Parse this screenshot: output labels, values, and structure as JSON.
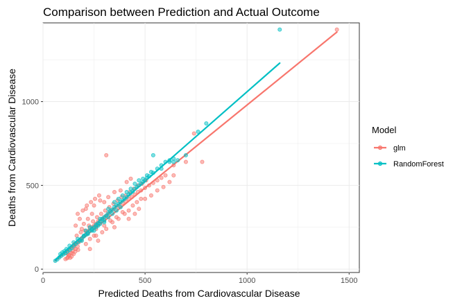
{
  "chart_data": {
    "type": "scatter",
    "title": "Comparison between Prediction and Actual Outcome",
    "xlabel": "Predicted Deaths from Cardiovascular Disease",
    "ylabel": "Deaths from Cardiovascular Disease",
    "xlim": [
      0,
      1550
    ],
    "ylim": [
      -20,
      1470
    ],
    "x_ticks": [
      0,
      500,
      1000,
      1500
    ],
    "y_ticks": [
      0,
      500,
      1000
    ],
    "grid": true,
    "legend": {
      "title": "Model",
      "placement": "right",
      "entries": [
        "glm",
        "RandomForest"
      ]
    },
    "series": [
      {
        "name": "glm",
        "color": "#F8766D",
        "points": [
          [
            110,
            60
          ],
          [
            118,
            65
          ],
          [
            122,
            72
          ],
          [
            128,
            80
          ],
          [
            133,
            68
          ],
          [
            140,
            75
          ],
          [
            150,
            90
          ],
          [
            120,
            95
          ],
          [
            145,
            110
          ],
          [
            160,
            120
          ],
          [
            170,
            135
          ],
          [
            155,
            150
          ],
          [
            175,
            160
          ],
          [
            185,
            170
          ],
          [
            190,
            185
          ],
          [
            200,
            195
          ],
          [
            210,
            205
          ],
          [
            215,
            220
          ],
          [
            225,
            230
          ],
          [
            230,
            245
          ],
          [
            240,
            250
          ],
          [
            250,
            260
          ],
          [
            260,
            270
          ],
          [
            270,
            285
          ],
          [
            280,
            290
          ],
          [
            290,
            300
          ],
          [
            300,
            310
          ],
          [
            310,
            320
          ],
          [
            320,
            330
          ],
          [
            330,
            345
          ],
          [
            345,
            355
          ],
          [
            360,
            370
          ],
          [
            375,
            380
          ],
          [
            390,
            395
          ],
          [
            405,
            405
          ],
          [
            420,
            420
          ],
          [
            435,
            430
          ],
          [
            450,
            445
          ],
          [
            465,
            460
          ],
          [
            480,
            470
          ],
          [
            500,
            485
          ],
          [
            520,
            500
          ],
          [
            540,
            515
          ],
          [
            560,
            530
          ],
          [
            580,
            545
          ],
          [
            600,
            560
          ],
          [
            230,
            180
          ],
          [
            250,
            200
          ],
          [
            270,
            170
          ],
          [
            220,
            300
          ],
          [
            240,
            330
          ],
          [
            200,
            270
          ],
          [
            180,
            300
          ],
          [
            160,
            260
          ],
          [
            210,
            360
          ],
          [
            260,
            240
          ],
          [
            300,
            260
          ],
          [
            330,
            290
          ],
          [
            350,
            250
          ],
          [
            370,
            300
          ],
          [
            400,
            330
          ],
          [
            420,
            350
          ],
          [
            440,
            380
          ],
          [
            460,
            400
          ],
          [
            480,
            420
          ],
          [
            300,
            400
          ],
          [
            320,
            430
          ],
          [
            350,
            460
          ],
          [
            380,
            470
          ],
          [
            410,
            520
          ],
          [
            430,
            540
          ],
          [
            250,
            380
          ],
          [
            280,
            410
          ],
          [
            190,
            240
          ],
          [
            210,
            150
          ],
          [
            230,
            120
          ],
          [
            260,
            200
          ],
          [
            290,
            220
          ],
          [
            310,
            240
          ],
          [
            340,
            280
          ],
          [
            360,
            310
          ],
          [
            390,
            340
          ],
          [
            420,
            300
          ],
          [
            450,
            330
          ],
          [
            470,
            360
          ],
          [
            500,
            420
          ],
          [
            530,
            440
          ],
          [
            560,
            470
          ],
          [
            590,
            490
          ],
          [
            620,
            520
          ],
          [
            640,
            560
          ],
          [
            640,
            620
          ],
          [
            310,
            680
          ],
          [
            700,
            640
          ],
          [
            740,
            810
          ],
          [
            780,
            640
          ],
          [
            1440,
            1430
          ],
          [
            165,
            200
          ],
          [
            185,
            220
          ],
          [
            205,
            230
          ],
          [
            225,
            260
          ],
          [
            245,
            285
          ],
          [
            265,
            310
          ],
          [
            285,
            330
          ],
          [
            305,
            350
          ],
          [
            325,
            370
          ],
          [
            345,
            390
          ],
          [
            365,
            410
          ],
          [
            385,
            430
          ],
          [
            405,
            440
          ],
          [
            425,
            460
          ],
          [
            445,
            480
          ],
          [
            465,
            500
          ],
          [
            485,
            510
          ],
          [
            505,
            530
          ],
          [
            170,
            330
          ],
          [
            195,
            350
          ],
          [
            215,
            380
          ],
          [
            235,
            400
          ],
          [
            255,
            420
          ],
          [
            275,
            440
          ],
          [
            135,
            100
          ],
          [
            150,
            130
          ],
          [
            125,
            85
          ],
          [
            142,
            95
          ],
          [
            158,
            105
          ],
          [
            172,
            115
          ]
        ]
      },
      {
        "name": "RandomForest",
        "color": "#00BFC4",
        "points": [
          [
            60,
            50
          ],
          [
            70,
            58
          ],
          [
            80,
            70
          ],
          [
            90,
            80
          ],
          [
            100,
            88
          ],
          [
            110,
            95
          ],
          [
            120,
            105
          ],
          [
            130,
            115
          ],
          [
            140,
            125
          ],
          [
            150,
            140
          ],
          [
            160,
            150
          ],
          [
            170,
            160
          ],
          [
            180,
            170
          ],
          [
            190,
            180
          ],
          [
            200,
            195
          ],
          [
            210,
            205
          ],
          [
            220,
            215
          ],
          [
            230,
            230
          ],
          [
            240,
            240
          ],
          [
            250,
            250
          ],
          [
            260,
            265
          ],
          [
            270,
            275
          ],
          [
            280,
            285
          ],
          [
            290,
            300
          ],
          [
            300,
            310
          ],
          [
            310,
            320
          ],
          [
            320,
            335
          ],
          [
            330,
            345
          ],
          [
            340,
            355
          ],
          [
            350,
            370
          ],
          [
            360,
            380
          ],
          [
            370,
            390
          ],
          [
            380,
            400
          ],
          [
            390,
            410
          ],
          [
            400,
            420
          ],
          [
            410,
            430
          ],
          [
            420,
            445
          ],
          [
            430,
            455
          ],
          [
            440,
            465
          ],
          [
            450,
            480
          ],
          [
            460,
            490
          ],
          [
            470,
            500
          ],
          [
            480,
            510
          ],
          [
            490,
            520
          ],
          [
            500,
            530
          ],
          [
            510,
            545
          ],
          [
            520,
            555
          ],
          [
            540,
            575
          ],
          [
            560,
            600
          ],
          [
            580,
            620
          ],
          [
            600,
            640
          ],
          [
            620,
            650
          ],
          [
            640,
            660
          ],
          [
            660,
            650
          ],
          [
            540,
            680
          ],
          [
            700,
            680
          ],
          [
            760,
            820
          ],
          [
            800,
            870
          ],
          [
            1160,
            1430
          ],
          [
            280,
            300
          ],
          [
            300,
            280
          ],
          [
            320,
            360
          ],
          [
            340,
            330
          ],
          [
            360,
            350
          ],
          [
            380,
            370
          ],
          [
            250,
            230
          ],
          [
            270,
            260
          ],
          [
            230,
            250
          ],
          [
            210,
            230
          ],
          [
            190,
            170
          ],
          [
            170,
            180
          ],
          [
            150,
            160
          ],
          [
            130,
            140
          ],
          [
            115,
            120
          ],
          [
            105,
            108
          ],
          [
            95,
            100
          ],
          [
            85,
            90
          ],
          [
            350,
            400
          ],
          [
            370,
            420
          ],
          [
            390,
            440
          ],
          [
            410,
            460
          ],
          [
            430,
            480
          ],
          [
            450,
            510
          ],
          [
            470,
            530
          ],
          [
            490,
            540
          ],
          [
            510,
            560
          ],
          [
            530,
            580
          ],
          [
            580,
            600
          ],
          [
            620,
            640
          ],
          [
            640,
            640
          ],
          [
            200,
            200
          ],
          [
            220,
            210
          ],
          [
            240,
            230
          ],
          [
            260,
            250
          ],
          [
            280,
            270
          ],
          [
            300,
            290
          ],
          [
            320,
            310
          ]
        ]
      }
    ],
    "trend_lines": [
      {
        "name": "glm",
        "color": "#F8766D",
        "from": [
          60,
          50
        ],
        "to": [
          1440,
          1415
        ]
      },
      {
        "name": "RandomForest",
        "color": "#00BFC4",
        "from": [
          60,
          55
        ],
        "to": [
          1160,
          1230
        ]
      }
    ]
  }
}
